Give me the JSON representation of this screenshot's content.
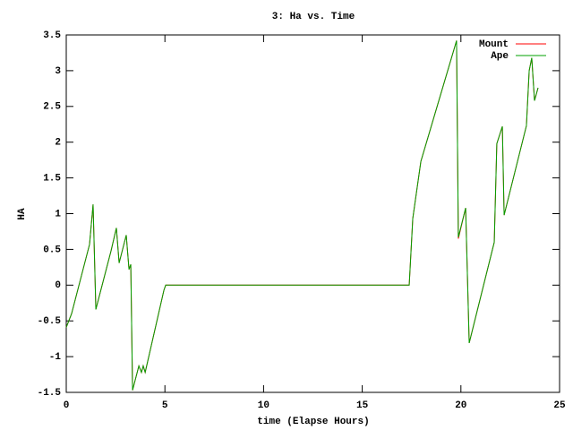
{
  "chart_data": {
    "type": "line",
    "title": "3: Ha vs. Time",
    "xlabel": "time (Elapse Hours)",
    "ylabel": "HA",
    "x": [
      0,
      0.27,
      1.18,
      1.36,
      1.5,
      2.27,
      2.54,
      2.68,
      3.04,
      3.18,
      3.27,
      3.36,
      3.68,
      3.81,
      3.9,
      4.0,
      4.95,
      5.04,
      17.38,
      17.56,
      17.97,
      19.78,
      19.87,
      20.24,
      20.42,
      21.69,
      21.82,
      22.1,
      22.19,
      23.32,
      23.46,
      23.59,
      23.73,
      23.91
    ],
    "series": [
      {
        "name": "Mount",
        "color": "#ff0000",
        "values": [
          -0.59,
          -0.4,
          0.57,
          1.13,
          -0.34,
          0.48,
          0.8,
          0.31,
          0.7,
          0.22,
          0.29,
          -1.47,
          -1.13,
          -1.22,
          -1.13,
          -1.22,
          -0.07,
          0,
          0,
          0.93,
          1.73,
          3.42,
          0.65,
          1.08,
          -0.81,
          0.6,
          1.98,
          2.22,
          0.98,
          2.23,
          3.0,
          3.18,
          2.58,
          2.76
        ]
      },
      {
        "name": "Ape",
        "color": "#00a000",
        "values": [
          -0.59,
          -0.4,
          0.57,
          1.13,
          -0.34,
          0.48,
          0.8,
          0.31,
          0.7,
          0.22,
          0.29,
          -1.47,
          -1.13,
          -1.22,
          -1.13,
          -1.22,
          -0.07,
          0,
          0,
          0.93,
          1.73,
          3.42,
          0.67,
          1.08,
          -0.81,
          0.6,
          1.98,
          2.22,
          0.98,
          2.23,
          3.0,
          3.18,
          2.58,
          2.76
        ]
      }
    ],
    "xlim": [
      0,
      25
    ],
    "xticks": [
      0,
      5,
      10,
      15,
      20,
      25
    ],
    "ylim": [
      -1.5,
      3.5
    ],
    "yticks": [
      -1.5,
      -1,
      -0.5,
      0,
      0.5,
      1,
      1.5,
      2,
      2.5,
      3,
      3.5
    ],
    "legend": "top-right"
  }
}
